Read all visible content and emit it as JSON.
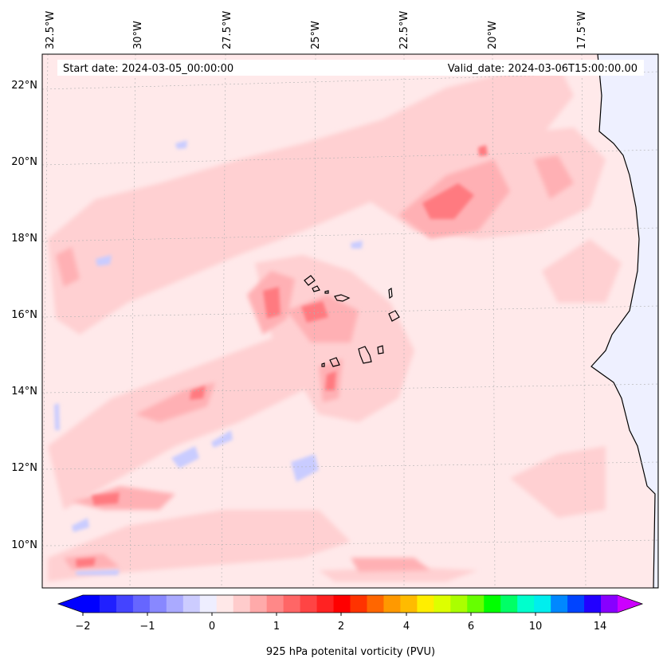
{
  "header": {
    "start_date": "Start date: 2024-03-05_00:00:00",
    "valid_date": "Valid_date: 2024-03-06T15:00:00.00"
  },
  "map": {
    "lon_labels": [
      "32.5°W",
      "30°W",
      "27.5°W",
      "25°W",
      "22.5°W",
      "20°W",
      "17.5°W"
    ],
    "lat_labels": [
      "22°N",
      "20°N",
      "18°N",
      "16°N",
      "14°N",
      "12°N",
      "10°N"
    ],
    "background_color": "#ffe9ea",
    "land_color": "#eef0ff",
    "coastline_color": "#000000"
  },
  "colorbar": {
    "label": "925 hPa potenital vorticity (PVU)",
    "tick_labels": [
      "−2",
      "−1",
      "0",
      "1",
      "2",
      "4",
      "6",
      "10",
      "14"
    ],
    "extend": "both",
    "colors": [
      "#0000ff",
      "#2020ff",
      "#4444ff",
      "#6666ff",
      "#8888ff",
      "#aaaaff",
      "#ccccff",
      "#eeeeff",
      "#ffe8e8",
      "#ffcccc",
      "#ffaaaa",
      "#ff8888",
      "#ff6666",
      "#ff4444",
      "#ff2222",
      "#ff0000",
      "#ff3300",
      "#ff6600",
      "#ff9900",
      "#ffbb00",
      "#ffee00",
      "#ddff00",
      "#aaff00",
      "#66ff00",
      "#00ff00",
      "#00ff66",
      "#00ffcc",
      "#00eeee",
      "#0088ff",
      "#0044ff",
      "#2200ff",
      "#8800ff"
    ]
  }
}
